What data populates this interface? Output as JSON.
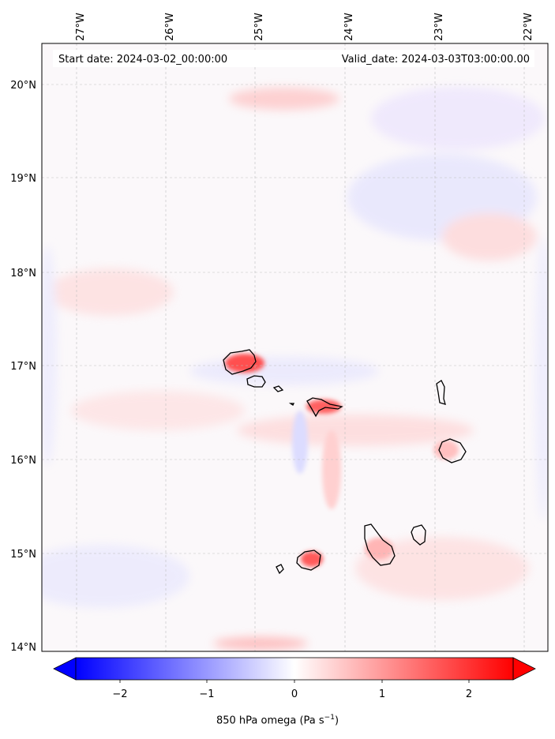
{
  "header": {
    "start_date": "Start date: 2024-03-02_00:00:00",
    "valid_date": "Valid_date: 2024-03-03T03:00:00.00"
  },
  "map": {
    "lon_labels": [
      "27°W",
      "26°W",
      "25°W",
      "24°W",
      "23°W",
      "22°W"
    ],
    "lat_labels": [
      "20°N",
      "19°N",
      "18°N",
      "17°N",
      "16°N",
      "15°N",
      "14°N"
    ],
    "lon_values": [
      -27,
      -26,
      -25,
      -24,
      -23,
      -22
    ],
    "lat_values": [
      20,
      19,
      18,
      17,
      16,
      15,
      14
    ],
    "gridlines": true,
    "coastlines": "Cape Verde islands",
    "field": "850 hPa omega"
  },
  "colorbar": {
    "ticks": [
      "−2",
      "−1",
      "0",
      "1",
      "2"
    ],
    "tick_values": [
      -2,
      -1,
      0,
      1,
      2
    ],
    "range": [
      -2.6,
      2.6
    ],
    "extend": "both",
    "colormap": "bwr",
    "label_main": "850 hPa omega (Pa s",
    "label_sup": "−1",
    "label_end": ")",
    "neg_color": "#0000ff",
    "mid_color": "#ffffff",
    "pos_color": "#ff0000"
  },
  "chart_data": {
    "type": "heatmap",
    "title": "",
    "xlabel": "",
    "ylabel": "",
    "xlim": [
      -27.35,
      -21.9
    ],
    "ylim": [
      13.95,
      20.45
    ],
    "colorbar_label": "850 hPa omega (Pa s−1)",
    "colorbar_range": [
      -2.6,
      2.6
    ]
  }
}
